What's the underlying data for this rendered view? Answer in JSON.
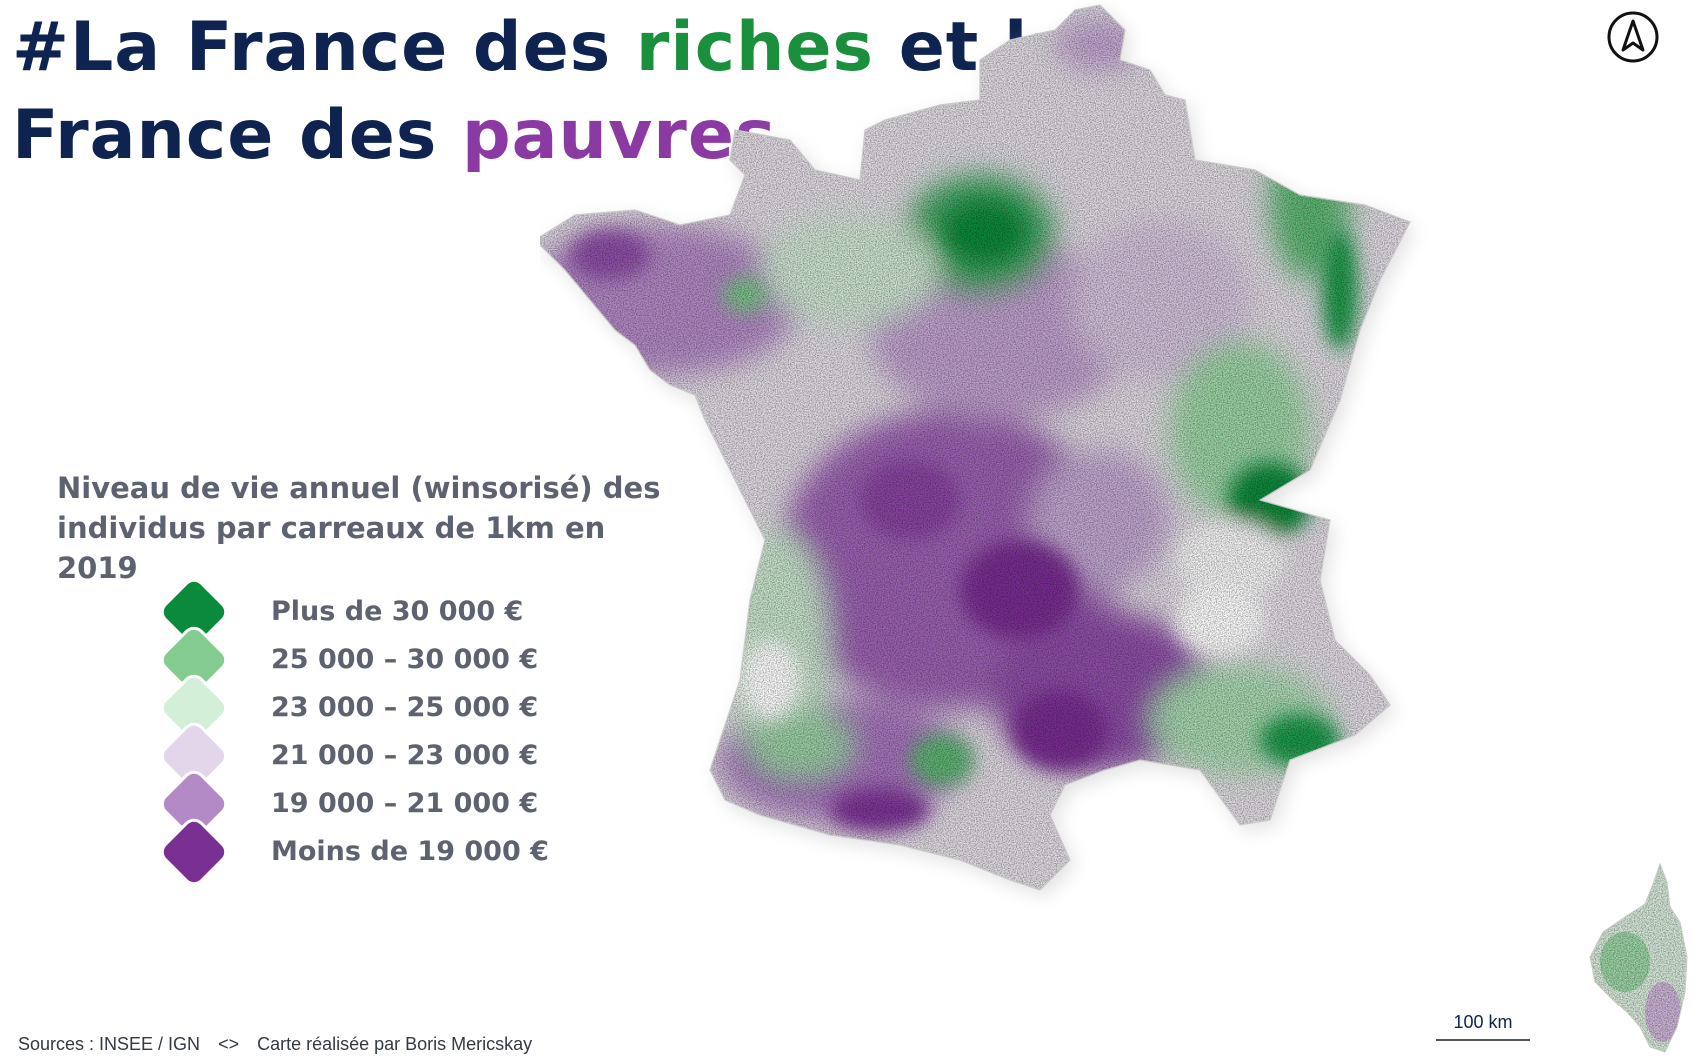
{
  "title": {
    "line1_prefix": "#La France des ",
    "line1_accent": "riches",
    "line1_suffix": " et la",
    "line2_prefix": "France des ",
    "line2_accent": "pauvres"
  },
  "colors": {
    "title_text": "#0e2350",
    "rich_accent": "#1a8f3c",
    "poor_accent": "#8b3aa4",
    "legend_text": "#5c6270"
  },
  "legend": {
    "title": "Niveau de vie annuel (winsorisé) des individus par carreaux de 1km en 2019",
    "items": [
      {
        "label": "Plus de 30 000 €",
        "color": "#0a8a3b"
      },
      {
        "label": "25 000 – 30 000 €",
        "color": "#84cc8f"
      },
      {
        "label": "23 000 – 25 000 €",
        "color": "#d3efd8"
      },
      {
        "label": "21 000 – 23 000 €",
        "color": "#e4d6ea"
      },
      {
        "label": "19 000 – 21 000 €",
        "color": "#b48ac6"
      },
      {
        "label": "Moins de 19 000 €",
        "color": "#7a2f93"
      }
    ]
  },
  "icons": {
    "north_arrow": "north-arrow-icon"
  },
  "footer": {
    "sources": "Sources : INSEE / IGN",
    "separator": "<>",
    "credit": "Carte réalisée par Boris Mericskay"
  },
  "scale_bar": {
    "label": "100 km"
  }
}
